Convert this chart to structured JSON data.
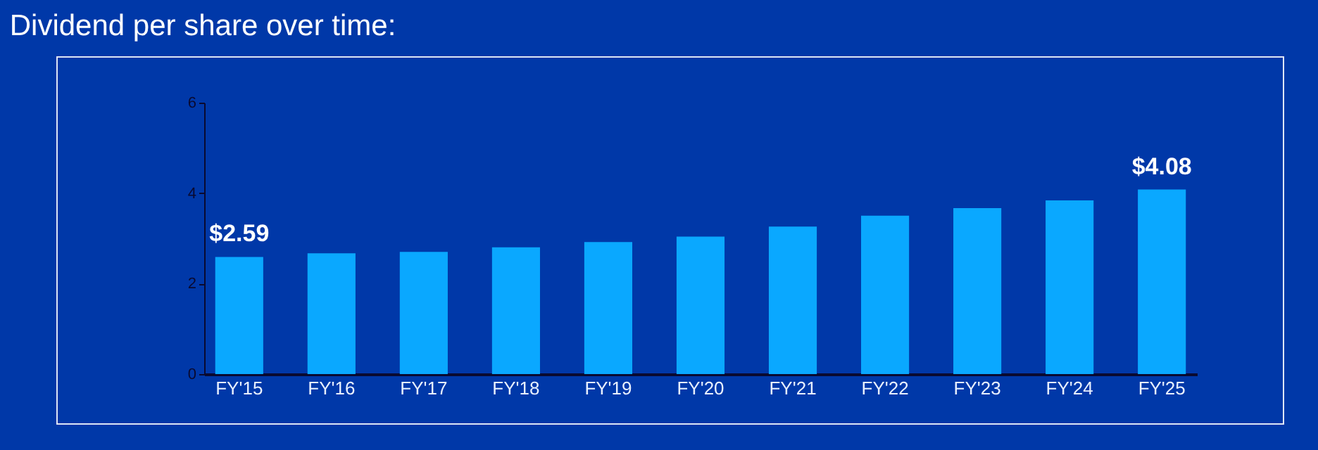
{
  "chart_data": {
    "type": "bar",
    "title": "Dividend per share over time:",
    "categories": [
      "FY'15",
      "FY'16",
      "FY'17",
      "FY'18",
      "FY'19",
      "FY'20",
      "FY'21",
      "FY'22",
      "FY'23",
      "FY'24",
      "FY'25"
    ],
    "values": [
      2.59,
      2.67,
      2.7,
      2.8,
      2.92,
      3.04,
      3.26,
      3.5,
      3.67,
      3.84,
      4.08
    ],
    "color": "#0aa8ff",
    "ylim": [
      0,
      6
    ],
    "yticks": [
      0,
      2,
      4,
      6
    ],
    "grid": false,
    "annotations": [
      {
        "text": "$2.59",
        "x": "FY'15",
        "y": 2.59
      },
      {
        "text": "$4.08",
        "x": "FY'25",
        "y": 4.08
      }
    ]
  }
}
